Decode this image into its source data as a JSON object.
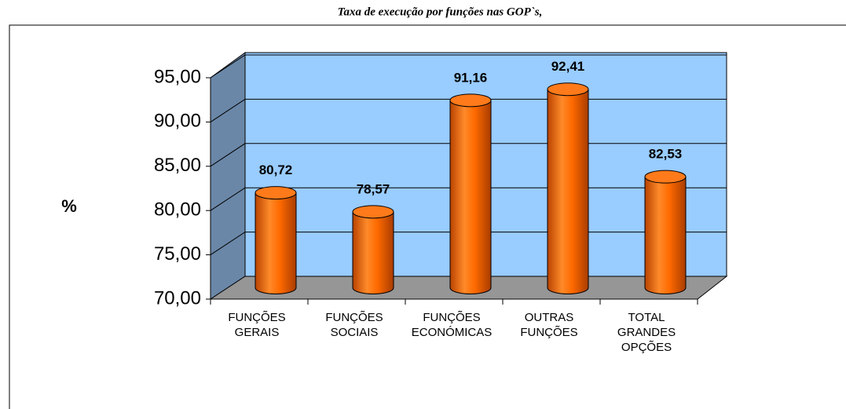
{
  "chart_data": {
    "type": "bar",
    "title": "Taxa de execução por funções nas GOP`s,",
    "y_label": "%",
    "categories": [
      [
        "FUNÇÕES",
        "GERAIS"
      ],
      [
        "FUNÇÕES",
        "SOCIAIS"
      ],
      [
        "FUNÇÕES",
        "ECONÓMICAS"
      ],
      [
        "OUTRAS",
        "FUNÇÕES"
      ],
      [
        "TOTAL",
        "GRANDES",
        "OPÇÕES"
      ]
    ],
    "values": [
      80.72,
      78.57,
      91.16,
      92.41,
      82.53
    ],
    "value_labels": [
      "80,72",
      "78,57",
      "91,16",
      "92,41",
      "82,53"
    ],
    "color": "#ff6600",
    "ylim": [
      70,
      95
    ],
    "yticks": [
      {
        "value": 70,
        "label": "70,00"
      },
      {
        "value": 75,
        "label": "75,00"
      },
      {
        "value": 80,
        "label": "80,00"
      },
      {
        "value": 85,
        "label": "85,00"
      },
      {
        "value": 90,
        "label": "90,00"
      },
      {
        "value": 95,
        "label": "95,00"
      }
    ],
    "grid": true
  }
}
